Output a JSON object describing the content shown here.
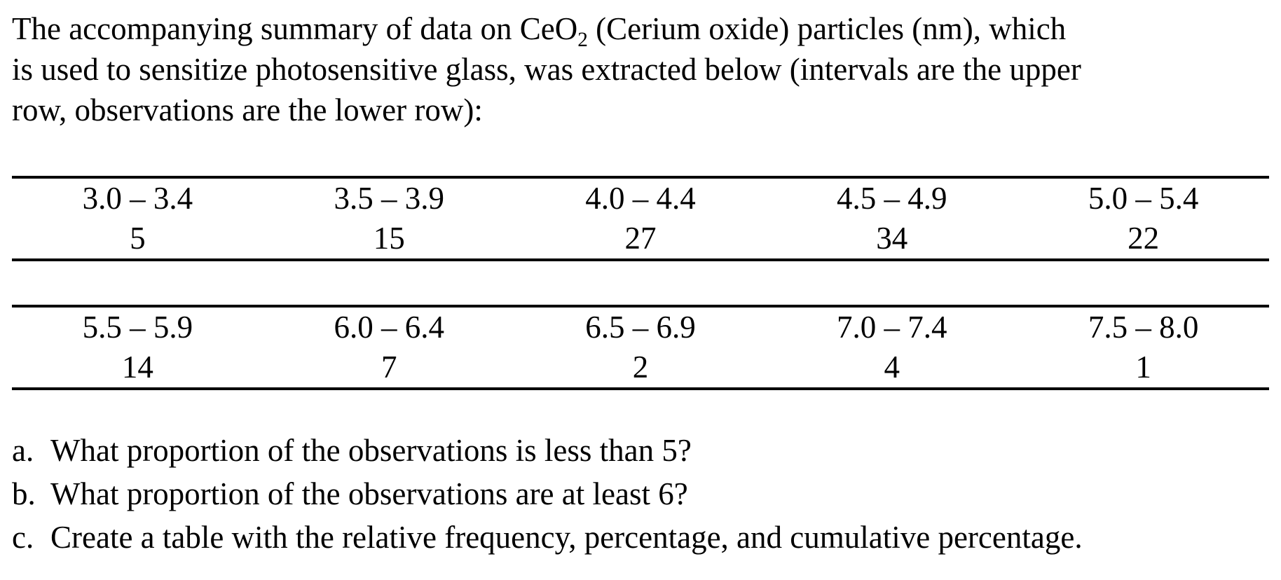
{
  "paragraph": {
    "line1_pre": "The accompanying summary of data on CeO",
    "line1_sub": "2",
    "line1_post": " (Cerium oxide) particles (nm), which",
    "line2": "is used to sensitize photosensitive glass, was extracted below (intervals are the upper",
    "line3": "row, observations are the lower row):"
  },
  "tables": [
    {
      "intervals": [
        "3.0 – 3.4",
        "3.5 – 3.9",
        "4.0 – 4.4",
        "4.5 – 4.9",
        "5.0 – 5.4"
      ],
      "observations": [
        "5",
        "15",
        "27",
        "34",
        "22"
      ]
    },
    {
      "intervals": [
        "5.5 – 5.9",
        "6.0 – 6.4",
        "6.5 – 6.9",
        "7.0 – 7.4",
        "7.5 – 8.0"
      ],
      "observations": [
        "14",
        "7",
        "2",
        "4",
        "1"
      ]
    }
  ],
  "questions": [
    {
      "label": "a.",
      "text": "What proportion of the observations is less than 5?"
    },
    {
      "label": "b.",
      "text": "What proportion of the observations are at least 6?"
    },
    {
      "label": "c.",
      "text": "Create a table with the relative frequency, percentage, and cumulative percentage."
    }
  ],
  "colors": {
    "text": "#000000",
    "background": "#ffffff",
    "rule": "#000000"
  }
}
